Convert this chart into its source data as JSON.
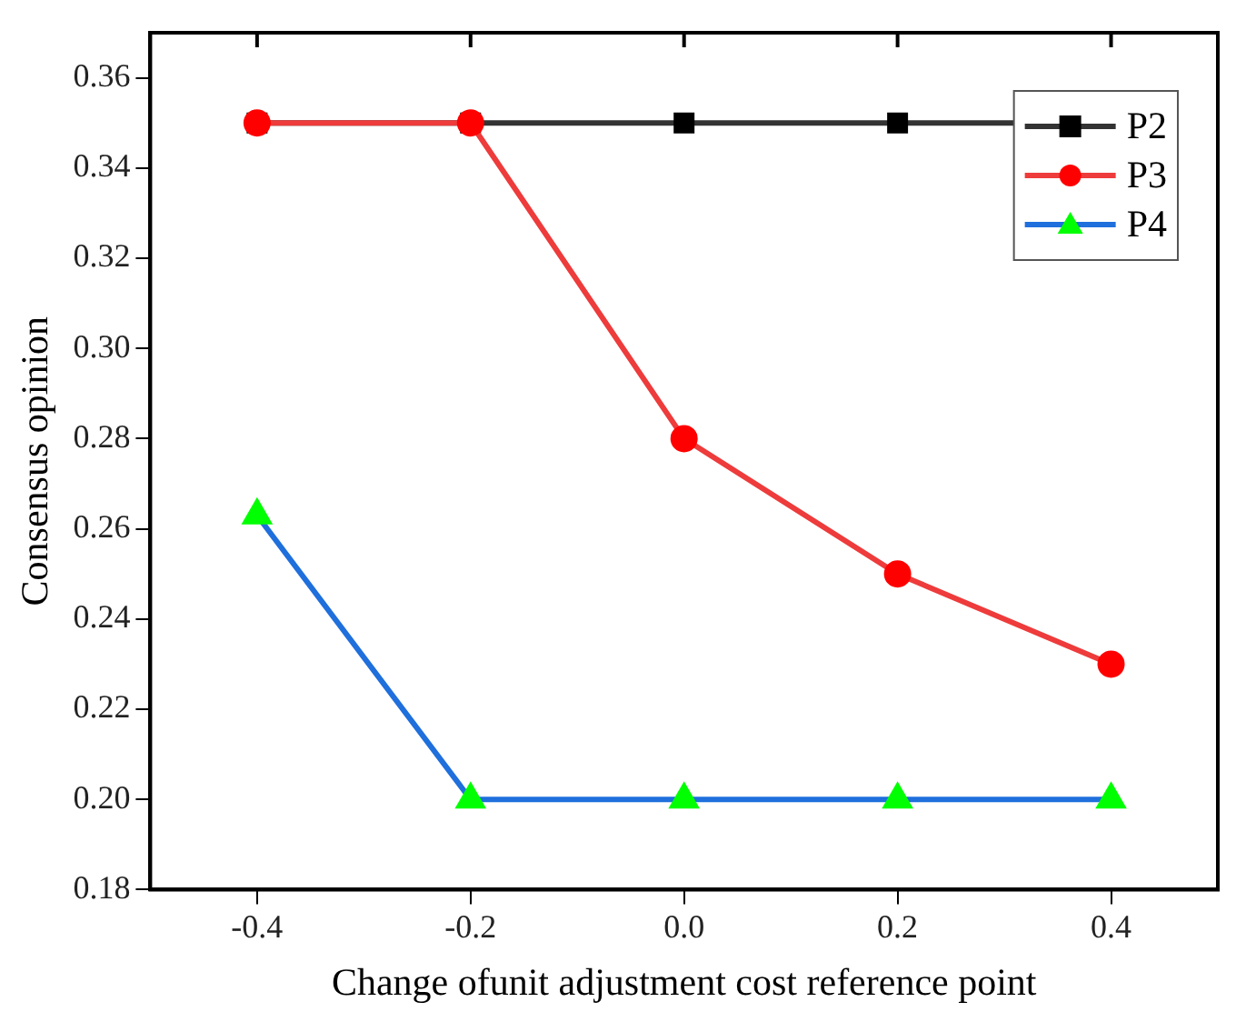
{
  "chart_data": {
    "type": "line",
    "xlabel": "Change ofunit adjustment cost reference point",
    "ylabel": "Consensus opinion",
    "x": [
      -0.4,
      -0.2,
      0.0,
      0.2,
      0.4
    ],
    "series": [
      {
        "name": "P2",
        "color": "#333333",
        "colors": [
          "#000000",
          "#000000",
          "#000000",
          "#000000",
          "#000000"
        ],
        "marker": "square",
        "values": [
          0.35,
          0.35,
          0.35,
          0.35,
          0.35
        ]
      },
      {
        "name": "P3",
        "color": "#ee3b3b",
        "colors": [
          "#ff0000",
          "#ff0000",
          "#ff0000",
          "#ff0000",
          "#ff0000"
        ],
        "marker": "circle",
        "values": [
          0.35,
          0.35,
          0.28,
          0.25,
          0.23
        ]
      },
      {
        "name": "P4",
        "color": "#1f6fdc",
        "colors": [
          "#00ff00",
          "#00ff00",
          "#00ff00",
          "#00ff00",
          "#00ff00"
        ],
        "marker": "triangle",
        "values": [
          0.263,
          0.2,
          0.2,
          0.2,
          0.2
        ]
      }
    ],
    "xlim": [
      -0.5,
      0.5
    ],
    "xticks": [
      {
        "value": -0.4,
        "label": "-0.4"
      },
      {
        "value": -0.2,
        "label": "-0.2"
      },
      {
        "value": 0.0,
        "label": "0.0"
      },
      {
        "value": 0.2,
        "label": "0.2"
      },
      {
        "value": 0.4,
        "label": "0.4"
      }
    ],
    "ylim": [
      0.18,
      0.37
    ],
    "yticks": [
      {
        "value": 0.18,
        "label": "0.18"
      },
      {
        "value": 0.2,
        "label": "0.20"
      },
      {
        "value": 0.22,
        "label": "0.22"
      },
      {
        "value": 0.24,
        "label": "0.24"
      },
      {
        "value": 0.26,
        "label": "0.26"
      },
      {
        "value": 0.28,
        "label": "0.28"
      },
      {
        "value": 0.3,
        "label": "0.30"
      },
      {
        "value": 0.32,
        "label": "0.32"
      },
      {
        "value": 0.34,
        "label": "0.34"
      },
      {
        "value": 0.36,
        "label": "0.36"
      }
    ],
    "grid": false,
    "legend": "top right",
    "line_style": "solid"
  }
}
